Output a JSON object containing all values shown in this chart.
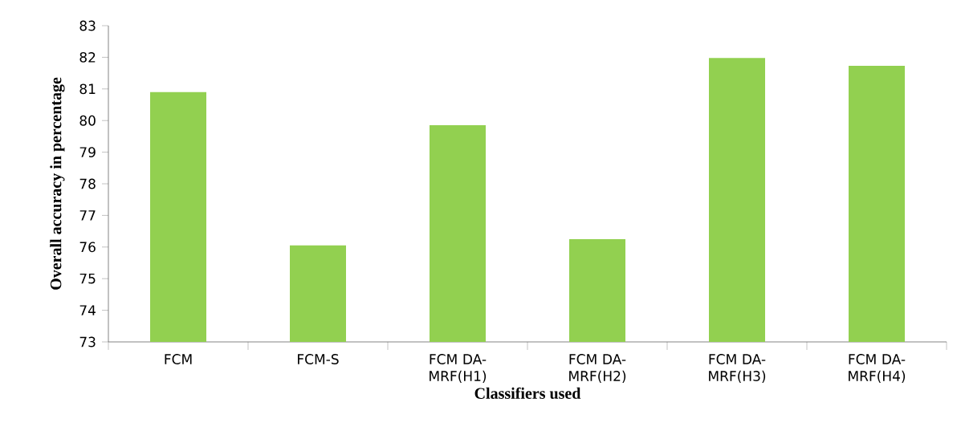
{
  "chart_data": {
    "type": "bar",
    "xlabel": "Classifiers used",
    "ylabel": "Overall accuracy in percentage",
    "categories": [
      "FCM",
      "FCM-S",
      "FCM DA-MRF(H1)",
      "FCM DA-MRF(H2)",
      "FCM DA-MRF(H3)",
      "FCM DA-MRF(H4)"
    ],
    "values": [
      80.9,
      76.05,
      79.85,
      76.25,
      81.98,
      81.73
    ],
    "color": "#92d050",
    "ylim": [
      73,
      83
    ],
    "yticks": [
      73,
      74,
      75,
      76,
      77,
      78,
      79,
      80,
      81,
      82,
      83
    ],
    "grid": false
  }
}
